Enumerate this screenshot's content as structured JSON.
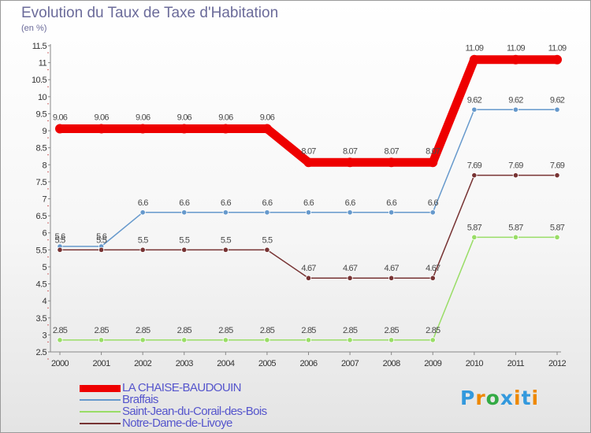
{
  "chart_data": {
    "type": "line",
    "title": "Evolution du Taux de Taxe d'Habitation",
    "subtitle": "(en %)",
    "xlabel": "",
    "ylabel": "",
    "categories": [
      "2000",
      "2001",
      "2002",
      "2003",
      "2004",
      "2005",
      "2006",
      "2007",
      "2008",
      "2009",
      "2010",
      "2011",
      "2012"
    ],
    "ylim": [
      2.5,
      11.5
    ],
    "yticks": [
      "2.5",
      "3",
      "3.5",
      "4",
      "4.5",
      "5",
      "5.5",
      "6",
      "6.5",
      "7",
      "7.5",
      "8",
      "8.5",
      "9",
      "9.5",
      "10",
      "10.5",
      "11",
      "11.5"
    ],
    "grid": false,
    "legend_position": "bottom-left",
    "series": [
      {
        "name": "LA CHAISE-BAUDOUIN",
        "color": "#ee0000",
        "values": [
          9.06,
          9.06,
          9.06,
          9.06,
          9.06,
          9.06,
          8.07,
          8.07,
          8.07,
          8.07,
          11.09,
          11.09,
          11.09
        ],
        "labels": [
          "9.06",
          "9.06",
          "9.06",
          "9.06",
          "9.06",
          "9.06",
          "8.07",
          "8.07",
          "8.07",
          "8.07",
          "11.09",
          "11.09",
          "11.09"
        ]
      },
      {
        "name": "Braffais",
        "color": "#6699cc",
        "values": [
          5.6,
          5.6,
          6.6,
          6.6,
          6.6,
          6.6,
          6.6,
          6.6,
          6.6,
          6.6,
          9.62,
          9.62,
          9.62
        ],
        "labels": [
          "5.6",
          "5.6",
          "6.6",
          "6.6",
          "6.6",
          "6.6",
          "6.6",
          "6.6",
          "6.6",
          "6.6",
          "9.62",
          "9.62",
          "9.62"
        ]
      },
      {
        "name": "Saint-Jean-du-Corail-des-Bois",
        "color": "#99dd66",
        "values": [
          2.85,
          2.85,
          2.85,
          2.85,
          2.85,
          2.85,
          2.85,
          2.85,
          2.85,
          2.85,
          5.87,
          5.87,
          5.87
        ],
        "labels": [
          "2.85",
          "2.85",
          "2.85",
          "2.85",
          "2.85",
          "2.85",
          "2.85",
          "2.85",
          "2.85",
          "2.85",
          "5.87",
          "5.87",
          "5.87"
        ]
      },
      {
        "name": "Notre-Dame-de-Livoye",
        "color": "#773333",
        "values": [
          5.5,
          5.5,
          5.5,
          5.5,
          5.5,
          5.5,
          4.67,
          4.67,
          4.67,
          4.67,
          7.69,
          7.69,
          7.69
        ],
        "labels": [
          "5.5",
          "5.5",
          "5.5",
          "5.5",
          "5.5",
          "5.5",
          "4.67",
          "4.67",
          "4.67",
          "4.67",
          "7.69",
          "7.69",
          "7.69"
        ]
      }
    ]
  },
  "logo": {
    "letters": [
      "P",
      "r",
      "o",
      "x",
      "i",
      "t",
      "i"
    ],
    "colors": [
      "#3399dd",
      "#ee8800",
      "#33aa44",
      "#3399dd",
      "#ee8800",
      "#3399dd",
      "#ee8800"
    ]
  }
}
